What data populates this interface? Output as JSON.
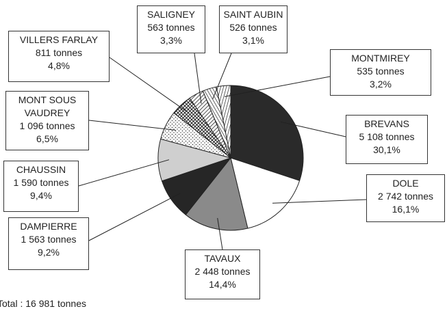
{
  "chart_data": {
    "type": "pie",
    "categories": [
      "BREVANS",
      "DOLE",
      "TAVAUX",
      "DAMPIERRE",
      "CHAUSSIN",
      "MONT SOUS VAUDREY",
      "VILLERS FARLAY",
      "SALIGNEY",
      "SAINT AUBIN",
      "MONTMIREY"
    ],
    "values": [
      5108,
      2742,
      2448,
      1563,
      1590,
      1096,
      811,
      563,
      526,
      535
    ],
    "value_labels": [
      "5 108 tonnes",
      "2 742 tonnes",
      "2 448 tonnes",
      "1 563 tonnes",
      "1 590 tonnes",
      "1 096 tonnes",
      "811 tonnes",
      "563 tonnes",
      "526 tonnes",
      "535 tonnes"
    ],
    "percentages": [
      30.1,
      16.1,
      14.4,
      9.2,
      9.4,
      6.5,
      4.8,
      3.3,
      3.1,
      3.2
    ],
    "percentage_labels": [
      "30,1%",
      "16,1%",
      "14,4%",
      "9,2%",
      "9,4%",
      "6,5%",
      "4,8%",
      "3,3%",
      "3,1%",
      "3,2%"
    ],
    "colors": [
      "#2a2a2a",
      "#ffffff",
      "#8a8a8a",
      "#262626",
      "#cfcfcf",
      "#ffffff",
      "#ffffff",
      "#ffffff",
      "#ffffff",
      "#ffffff"
    ],
    "total": "Total : 16 981 tonnes"
  }
}
